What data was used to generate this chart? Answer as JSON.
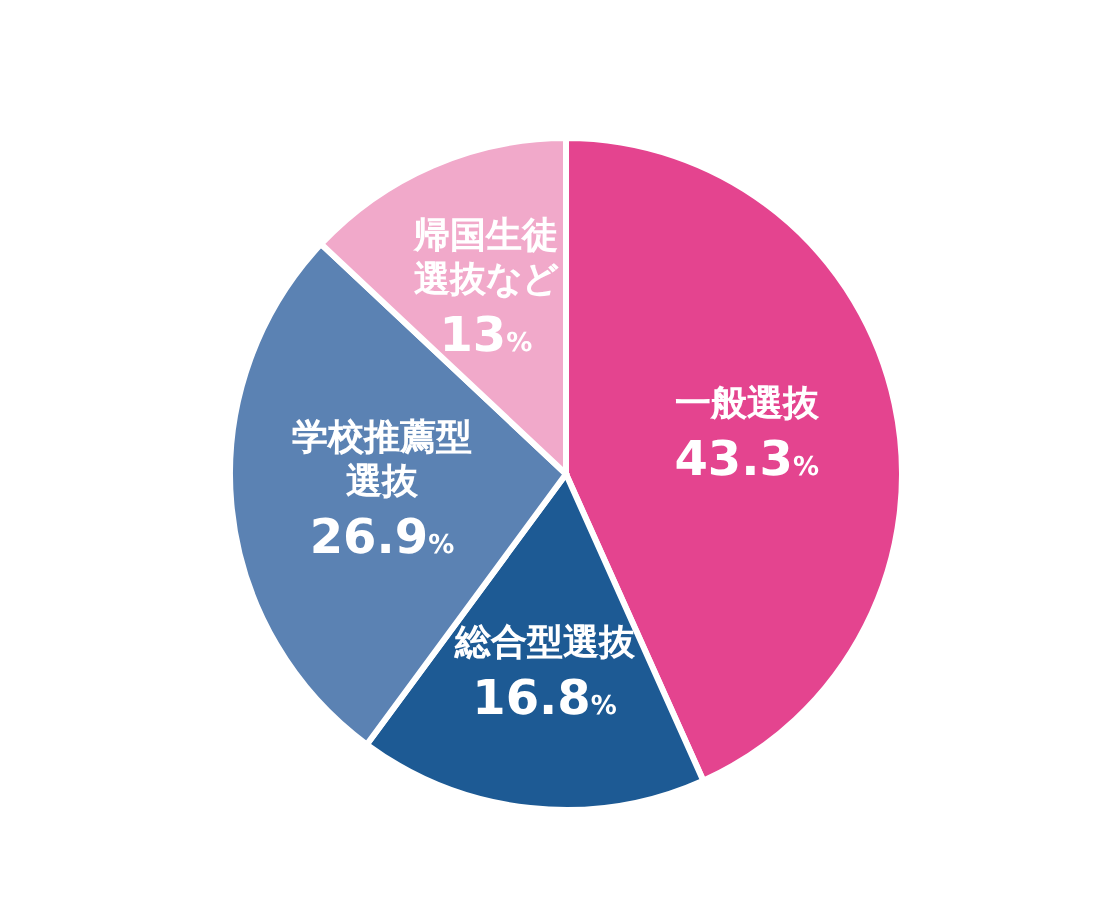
{
  "chart_data": {
    "type": "pie",
    "categories": [
      "一般選抜",
      "総合型選抜",
      "学校推薦型選抜",
      "帰国生徒選抜など"
    ],
    "values": [
      43.3,
      16.8,
      26.9,
      13
    ],
    "value_labels": [
      "43.3%",
      "16.8%",
      "26.9%",
      "13%"
    ],
    "colors": [
      "#e4448f",
      "#1d5a94",
      "#5b82b3",
      "#f1a9ca"
    ]
  }
}
